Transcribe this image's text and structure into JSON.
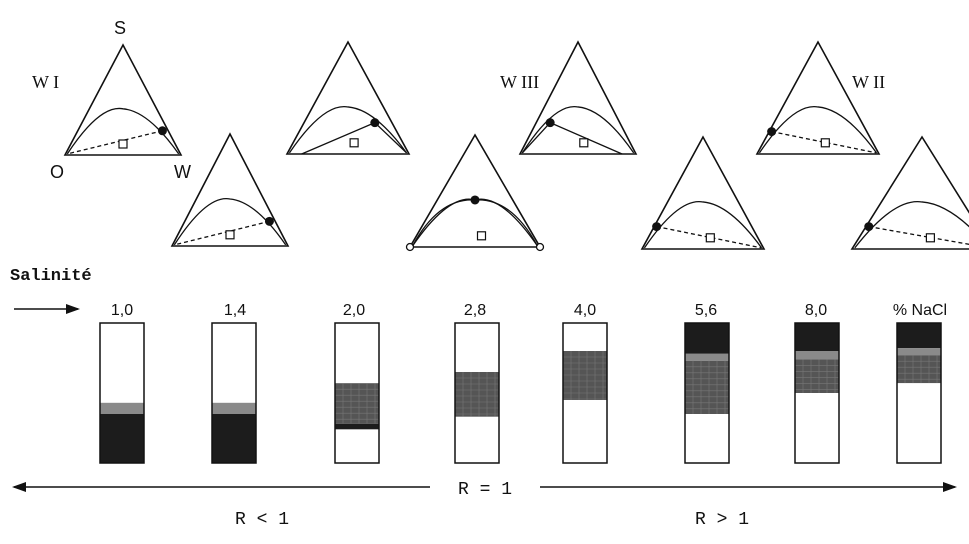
{
  "colors": {
    "ink": "#111111",
    "oil": "#1c1c1c",
    "middle": "#555555",
    "interface": "#8a8a8a",
    "water": "#ffffff"
  },
  "triangles": [
    {
      "id": "t1",
      "labels": {
        "top": "S",
        "left": "O",
        "right": "W",
        "type": "W I"
      },
      "dot": "right"
    },
    {
      "id": "t2",
      "labels": {},
      "dot": "right"
    },
    {
      "id": "t3",
      "labels": {},
      "dot": "center-right"
    },
    {
      "id": "t4",
      "labels": {},
      "dot": "center"
    },
    {
      "id": "t5",
      "labels": {
        "type": "W III"
      },
      "dot": "center-left"
    },
    {
      "id": "t6",
      "labels": {},
      "dot": "left"
    },
    {
      "id": "t7",
      "labels": {
        "type": "W II"
      },
      "dot": "left"
    },
    {
      "id": "t8",
      "labels": {},
      "dot": "left"
    }
  ],
  "salinity": {
    "label": "Salinité",
    "values": [
      "1,0",
      "1,4",
      "2,0",
      "2,8",
      "4,0",
      "5,6",
      "8,0"
    ],
    "unit": "% NaCl"
  },
  "tubes": [
    {
      "salinity": "1,0",
      "layers": [
        {
          "phase": "water",
          "from": 0.0,
          "to": 0.57
        },
        {
          "phase": "interface",
          "from": 0.57,
          "to": 0.65
        },
        {
          "phase": "oil",
          "from": 0.65,
          "to": 1.0
        }
      ]
    },
    {
      "salinity": "1,4",
      "layers": [
        {
          "phase": "water",
          "from": 0.0,
          "to": 0.57
        },
        {
          "phase": "interface",
          "from": 0.57,
          "to": 0.65
        },
        {
          "phase": "oil",
          "from": 0.65,
          "to": 1.0
        }
      ]
    },
    {
      "salinity": "2,0",
      "layers": [
        {
          "phase": "water",
          "from": 0.0,
          "to": 0.43
        },
        {
          "phase": "middle",
          "from": 0.43,
          "to": 0.72
        },
        {
          "phase": "oil",
          "from": 0.72,
          "to": 0.76
        },
        {
          "phase": "water",
          "from": 0.76,
          "to": 1.0
        }
      ]
    },
    {
      "salinity": "2,8",
      "layers": [
        {
          "phase": "water",
          "from": 0.0,
          "to": 0.35
        },
        {
          "phase": "middle",
          "from": 0.35,
          "to": 0.67
        },
        {
          "phase": "water",
          "from": 0.67,
          "to": 1.0
        }
      ]
    },
    {
      "salinity": "4,0",
      "layers": [
        {
          "phase": "water",
          "from": 0.0,
          "to": 0.2
        },
        {
          "phase": "middle",
          "from": 0.2,
          "to": 0.55
        },
        {
          "phase": "water",
          "from": 0.55,
          "to": 1.0
        }
      ]
    },
    {
      "salinity": "5,6",
      "layers": [
        {
          "phase": "oil",
          "from": 0.0,
          "to": 0.22
        },
        {
          "phase": "interface",
          "from": 0.22,
          "to": 0.27
        },
        {
          "phase": "middle",
          "from": 0.27,
          "to": 0.65
        },
        {
          "phase": "water",
          "from": 0.65,
          "to": 1.0
        }
      ]
    },
    {
      "salinity": "8,0",
      "layers": [
        {
          "phase": "oil",
          "from": 0.0,
          "to": 0.2
        },
        {
          "phase": "interface",
          "from": 0.2,
          "to": 0.26
        },
        {
          "phase": "middle",
          "from": 0.26,
          "to": 0.5
        },
        {
          "phase": "water",
          "from": 0.5,
          "to": 1.0
        }
      ]
    },
    {
      "salinity": "% NaCl",
      "layers": [
        {
          "phase": "oil",
          "from": 0.0,
          "to": 0.18
        },
        {
          "phase": "interface",
          "from": 0.18,
          "to": 0.23
        },
        {
          "phase": "middle",
          "from": 0.23,
          "to": 0.43
        },
        {
          "phase": "water",
          "from": 0.43,
          "to": 1.0
        }
      ]
    }
  ],
  "ratio": {
    "left": "R < 1",
    "center": "R = 1",
    "right": "R > 1"
  }
}
